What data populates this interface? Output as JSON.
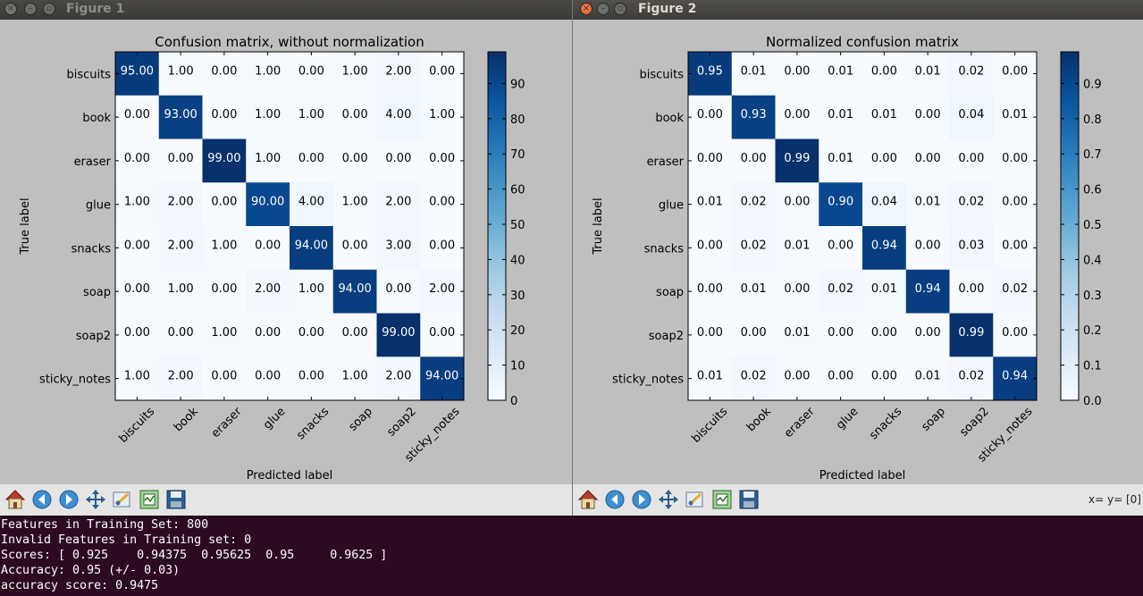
{
  "windows": [
    {
      "title": "Figure 1",
      "active": false,
      "coord_readout": ""
    },
    {
      "title": "Figure 2",
      "active": true,
      "coord_readout": "x= y= [0]"
    }
  ],
  "toolbar_icons": [
    "home-icon",
    "back-arrow-icon",
    "forward-arrow-icon",
    "pan-icon",
    "zoom-rect-icon",
    "configure-subplots-icon",
    "save-icon"
  ],
  "terminal": {
    "lines": [
      "Features in Training Set: 800",
      "Invalid Features in Training set: 0",
      "Scores: [ 0.925    0.94375  0.95625  0.95     0.9625 ]",
      "Accuracy: 0.95 (+/- 0.03)",
      "accuracy score: 0.9475"
    ]
  },
  "colors": {
    "cmap_low": "#f7fbff",
    "cmap_high": "#08306b",
    "terminal_bg": "#2c0a22",
    "window_bg": "#bfbfbf",
    "close_button": "#e0602a"
  },
  "chart_data": [
    {
      "type": "heatmap",
      "title": "Confusion matrix, without normalization",
      "xlabel": "Predicted label",
      "ylabel": "True label",
      "categories": [
        "biscuits",
        "book",
        "eraser",
        "glue",
        "snacks",
        "soap",
        "soap2",
        "sticky_notes"
      ],
      "value_format": "0.00",
      "values": [
        [
          95,
          1,
          0,
          1,
          0,
          1,
          2,
          0
        ],
        [
          0,
          93,
          0,
          1,
          1,
          0,
          4,
          1
        ],
        [
          0,
          0,
          99,
          1,
          0,
          0,
          0,
          0
        ],
        [
          1,
          2,
          0,
          90,
          4,
          1,
          2,
          0
        ],
        [
          0,
          2,
          1,
          0,
          94,
          0,
          3,
          0
        ],
        [
          0,
          1,
          0,
          2,
          1,
          94,
          0,
          2
        ],
        [
          0,
          0,
          1,
          0,
          0,
          0,
          99,
          0
        ],
        [
          1,
          2,
          0,
          0,
          0,
          1,
          2,
          94
        ]
      ],
      "colorbar": {
        "ticks": [
          "0",
          "10",
          "20",
          "30",
          "40",
          "50",
          "60",
          "70",
          "80",
          "90"
        ],
        "tick_values": [
          0,
          10,
          20,
          30,
          40,
          50,
          60,
          70,
          80,
          90
        ],
        "range": [
          0,
          99
        ]
      }
    },
    {
      "type": "heatmap",
      "title": "Normalized confusion matrix",
      "xlabel": "Predicted label",
      "ylabel": "True label",
      "categories": [
        "biscuits",
        "book",
        "eraser",
        "glue",
        "snacks",
        "soap",
        "soap2",
        "sticky_notes"
      ],
      "value_format": "0.00",
      "values": [
        [
          0.95,
          0.01,
          0.0,
          0.01,
          0.0,
          0.01,
          0.02,
          0.0
        ],
        [
          0.0,
          0.93,
          0.0,
          0.01,
          0.01,
          0.0,
          0.04,
          0.01
        ],
        [
          0.0,
          0.0,
          0.99,
          0.01,
          0.0,
          0.0,
          0.0,
          0.0
        ],
        [
          0.01,
          0.02,
          0.0,
          0.9,
          0.04,
          0.01,
          0.02,
          0.0
        ],
        [
          0.0,
          0.02,
          0.01,
          0.0,
          0.94,
          0.0,
          0.03,
          0.0
        ],
        [
          0.0,
          0.01,
          0.0,
          0.02,
          0.01,
          0.94,
          0.0,
          0.02
        ],
        [
          0.0,
          0.0,
          0.01,
          0.0,
          0.0,
          0.0,
          0.99,
          0.0
        ],
        [
          0.01,
          0.02,
          0.0,
          0.0,
          0.0,
          0.01,
          0.02,
          0.94
        ]
      ],
      "colorbar": {
        "ticks": [
          "0.0",
          "0.1",
          "0.2",
          "0.3",
          "0.4",
          "0.5",
          "0.6",
          "0.7",
          "0.8",
          "0.9"
        ],
        "tick_values": [
          0,
          0.1,
          0.2,
          0.3,
          0.4,
          0.5,
          0.6,
          0.7,
          0.8,
          0.9
        ],
        "range": [
          0,
          0.99
        ]
      }
    }
  ]
}
